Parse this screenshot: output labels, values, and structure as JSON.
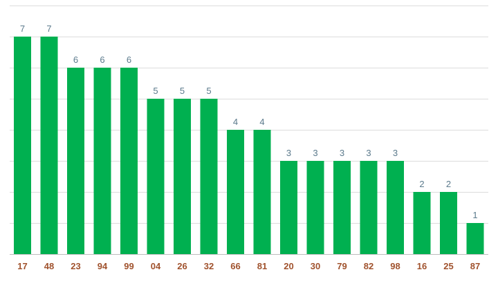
{
  "chart_data": {
    "type": "bar",
    "categories": [
      "17",
      "48",
      "23",
      "94",
      "99",
      "04",
      "26",
      "32",
      "66",
      "81",
      "20",
      "30",
      "79",
      "82",
      "98",
      "16",
      "25",
      "87"
    ],
    "values": [
      7,
      7,
      6,
      6,
      6,
      5,
      5,
      5,
      4,
      4,
      3,
      3,
      3,
      3,
      3,
      2,
      2,
      1
    ],
    "title": "",
    "xlabel": "",
    "ylabel": "",
    "ylim": [
      0,
      8
    ],
    "grid": true,
    "legend": "none",
    "colors": {
      "bar": "#00b050",
      "data_label": "#5b7a8c",
      "tick_label": "#a0522d",
      "grid": "#dcdcdc"
    }
  }
}
